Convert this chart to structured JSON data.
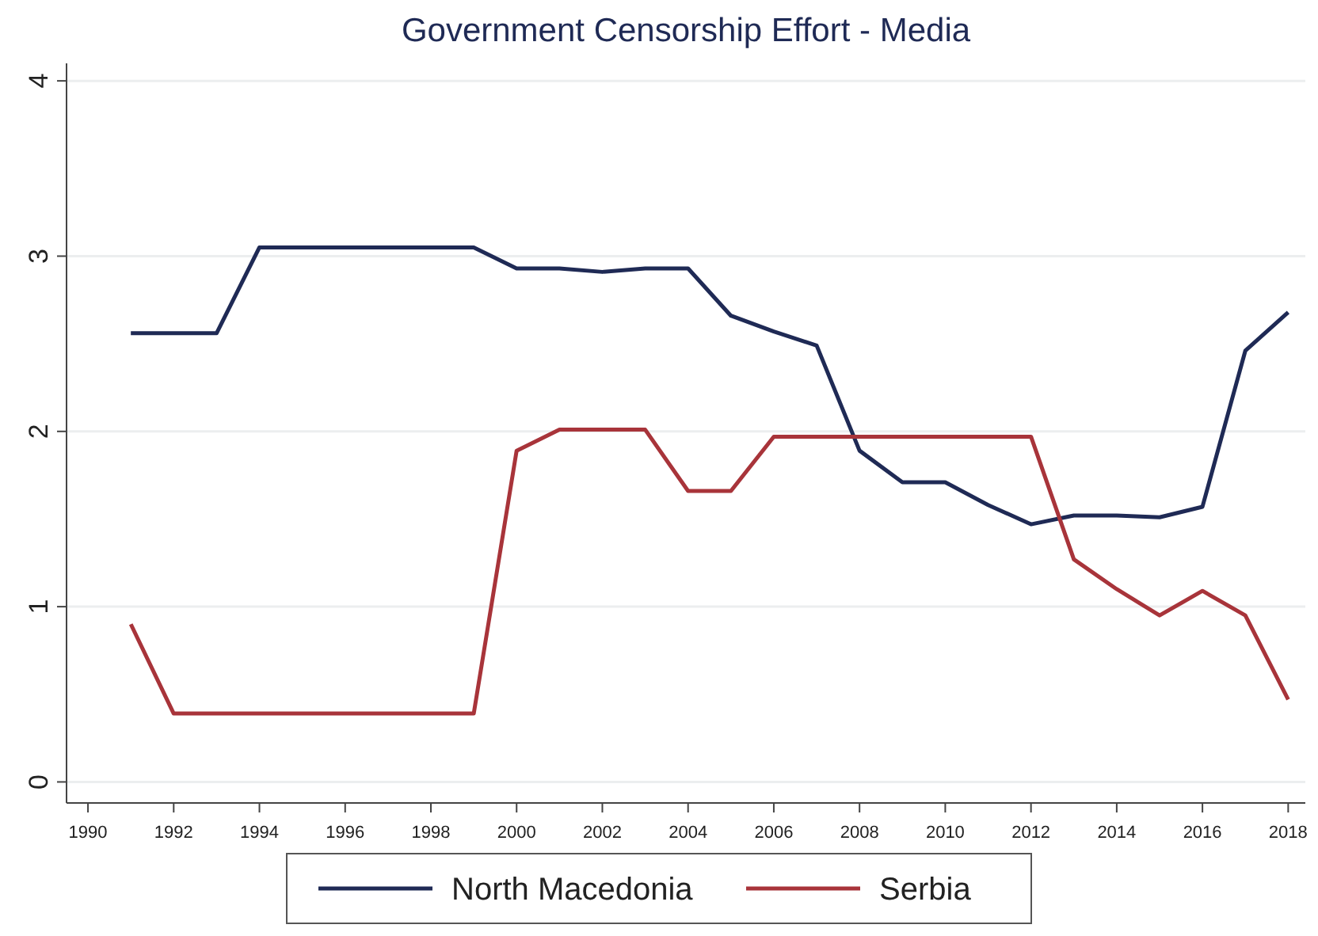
{
  "chart_data": {
    "type": "line",
    "title": "Government Censorship Effort - Media",
    "x": [
      1991,
      1992,
      1993,
      1994,
      1995,
      1996,
      1997,
      1998,
      1999,
      2000,
      2001,
      2002,
      2003,
      2004,
      2005,
      2006,
      2007,
      2008,
      2009,
      2010,
      2011,
      2012,
      2013,
      2014,
      2015,
      2016,
      2017,
      2018
    ],
    "series": [
      {
        "name": "North Macedonia",
        "color": "#1f2a55",
        "values": [
          2.56,
          2.56,
          2.56,
          3.05,
          3.05,
          3.05,
          3.05,
          3.05,
          3.05,
          2.93,
          2.93,
          2.91,
          2.93,
          2.93,
          2.66,
          2.57,
          2.49,
          1.89,
          1.71,
          1.71,
          1.58,
          1.47,
          1.52,
          1.52,
          1.51,
          1.57,
          2.46,
          2.68
        ]
      },
      {
        "name": "Serbia",
        "color": "#a8343a",
        "values": [
          0.9,
          0.39,
          0.39,
          0.39,
          0.39,
          0.39,
          0.39,
          0.39,
          0.39,
          1.89,
          2.01,
          2.01,
          2.01,
          1.66,
          1.66,
          1.97,
          1.97,
          1.97,
          1.97,
          1.97,
          1.97,
          1.97,
          1.27,
          1.1,
          0.95,
          1.09,
          0.95,
          0.47
        ]
      }
    ],
    "xlim": [
      1989.5,
      2018.4
    ],
    "xticks": [
      1990,
      1992,
      1994,
      1996,
      1998,
      2000,
      2002,
      2004,
      2006,
      2008,
      2010,
      2012,
      2014,
      2016,
      2018
    ],
    "ylim": [
      -0.12,
      4.1
    ],
    "yticks": [
      0,
      1,
      2,
      3,
      4
    ],
    "grid": "y",
    "legend": "bottom",
    "marker": "none",
    "line_style": "solid"
  }
}
